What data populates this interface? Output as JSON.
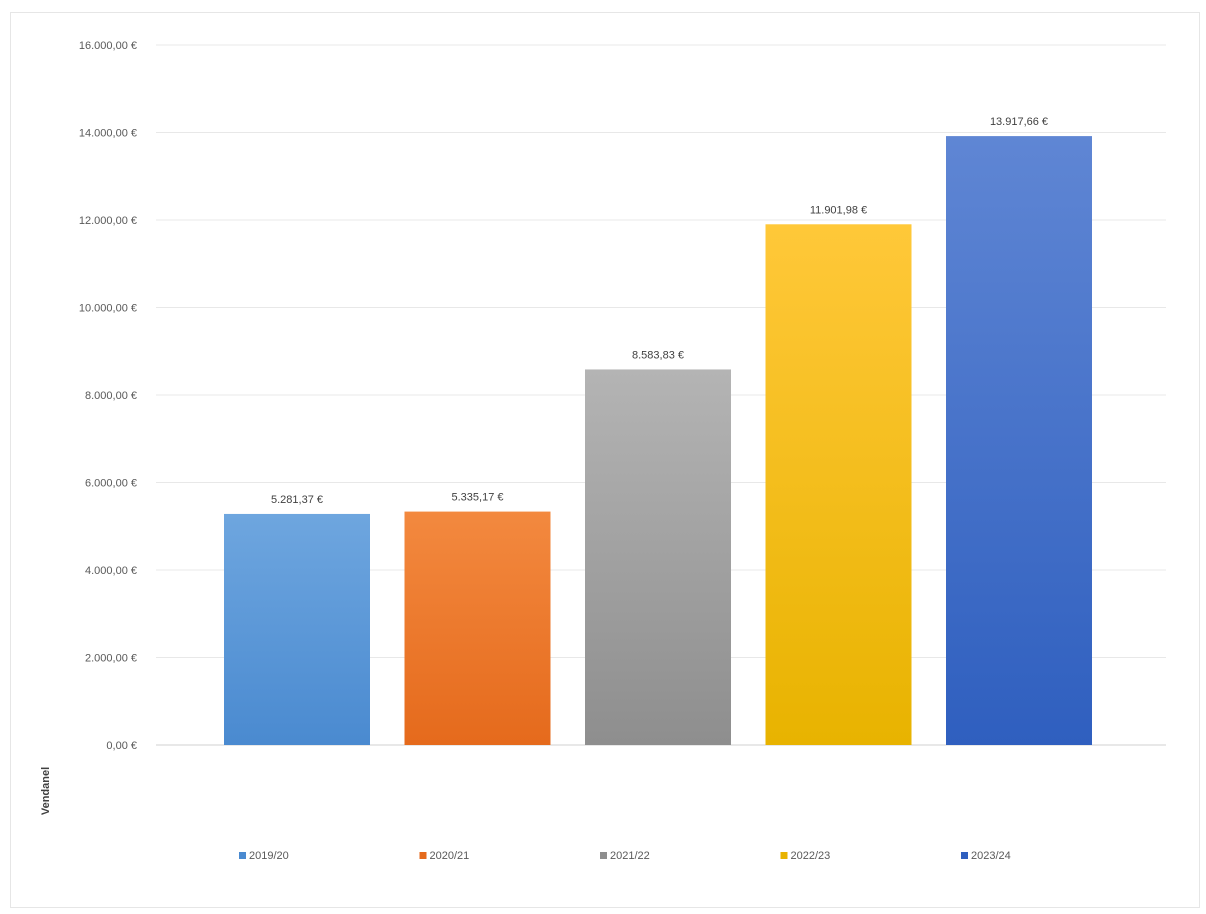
{
  "chart_data": {
    "type": "bar",
    "categories": [
      "2019/20",
      "2020/21",
      "2021/22",
      "2022/23",
      "2023/24"
    ],
    "values": [
      5281.37,
      5335.17,
      8583.83,
      11901.98,
      13917.66
    ],
    "value_labels": [
      "5.281,37 €",
      "5.335,17 €",
      "8.583,83 €",
      "11.901,98 €",
      "13.917,66 €"
    ],
    "y_ticks": [
      0,
      2000,
      4000,
      6000,
      8000,
      10000,
      12000,
      14000,
      16000
    ],
    "y_tick_labels": [
      "0,00 €",
      "2.000,00 €",
      "4.000,00 €",
      "6.000,00 €",
      "8.000,00 €",
      "10.000,00 €",
      "12.000,00 €",
      "14.000,00 €",
      "16.000,00 €"
    ],
    "ylim": [
      0,
      16000
    ],
    "ylabel": "Vendanel",
    "grid": true,
    "legend": "bottom",
    "colors": [
      {
        "top": "#6ea6df",
        "bottom": "#4a8ad0"
      },
      {
        "top": "#f3893f",
        "bottom": "#e56a1c"
      },
      {
        "top": "#b4b4b4",
        "bottom": "#8e8e8e"
      },
      {
        "top": "#ffc839",
        "bottom": "#e8b300"
      },
      {
        "top": "#5f86d4",
        "bottom": "#2f5fbf"
      }
    ]
  }
}
